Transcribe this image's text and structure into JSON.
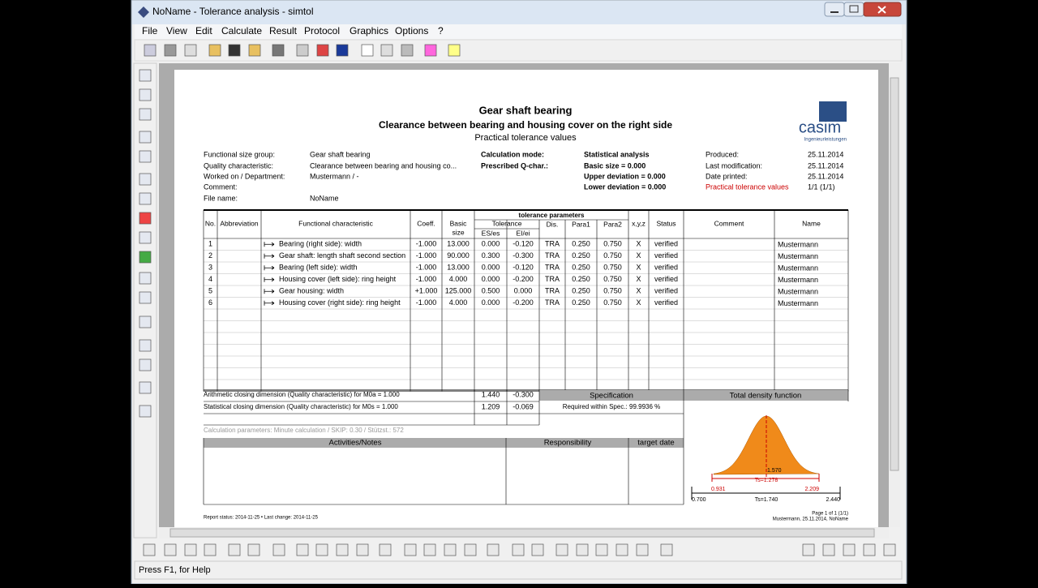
{
  "window": {
    "title": "NoName - Tolerance analysis - simtol",
    "menu": [
      "File",
      "View",
      "Edit",
      "Calculate",
      "Result",
      "Protocol",
      "Graphics",
      "Options",
      "?"
    ]
  },
  "report": {
    "title": "Gear shaft bearing",
    "subtitle": "Clearance between bearing and housing cover on the right side",
    "subtitle2": "Practical tolerance values",
    "logo": "casim",
    "logo_sub": "Ingenieurleistungen",
    "info": {
      "left": [
        {
          "label": "Functional size group:",
          "value": "Gear shaft bearing"
        },
        {
          "label": "Quality characteristic:",
          "value": "Clearance between bearing and housing co..."
        },
        {
          "label": "Worked on / Department:",
          "value": "Mustermann /  -"
        },
        {
          "label": "Comment:"
        },
        {
          "label": "File name:",
          "value": "NoName"
        }
      ],
      "middle": [
        {
          "label": "Calculation mode:",
          "value": "Statistical analysis"
        },
        {
          "label": "Prescribed Q-char.:",
          "value": "Basic size = 0.000"
        },
        {
          "value": "Upper deviation = 0.000"
        },
        {
          "value": "Lower deviation = 0.000"
        }
      ],
      "right": [
        {
          "label": "Produced:",
          "value": "25.11.2014"
        },
        {
          "label": "Last modification:",
          "value": "25.11.2014"
        },
        {
          "label": "Date printed:",
          "value": "25.11.2014"
        },
        {
          "label": "Practical tolerance values",
          "value": "1/1 (1/1)"
        }
      ]
    },
    "table": {
      "header": {
        "no": "No.",
        "abbreviation": "Abbreviation",
        "characteristic": "Functional characteristic",
        "coeff": "Coeff.",
        "basic": [
          "Basic",
          "size"
        ],
        "group": "tolerance parameters",
        "tolerance": "Tolerance",
        "es": "ES/es",
        "ei": "EI/ei",
        "dis": "Dis.",
        "para1": "Para1",
        "para2": "Para2",
        "xyz": "x,y,z",
        "status": "Status",
        "comment": "Comment",
        "name": "Name"
      },
      "rows": [
        {
          "no": "1",
          "characteristic": "Bearing (right side): width",
          "coeff": "-1.000",
          "basic": "13.000",
          "es": "0.000",
          "ei": "-0.120",
          "dis": "TRA",
          "para1": "0.250",
          "para2": "0.750",
          "xyz": "X",
          "status": "verified",
          "name": "Mustermann"
        },
        {
          "no": "2",
          "characteristic": "Gear shaft: length shaft second section",
          "coeff": "-1.000",
          "basic": "90.000",
          "es": "0.300",
          "ei": "-0.300",
          "dis": "TRA",
          "para1": "0.250",
          "para2": "0.750",
          "xyz": "X",
          "status": "verified",
          "name": "Mustermann"
        },
        {
          "no": "3",
          "characteristic": "Bearing (left side): width",
          "coeff": "-1.000",
          "basic": "13.000",
          "es": "0.000",
          "ei": "-0.120",
          "dis": "TRA",
          "para1": "0.250",
          "para2": "0.750",
          "xyz": "X",
          "status": "verified",
          "name": "Mustermann"
        },
        {
          "no": "4",
          "characteristic": "Housing cover (left side): ring height",
          "coeff": "-1.000",
          "basic": "4.000",
          "es": "0.000",
          "ei": "-0.200",
          "dis": "TRA",
          "para1": "0.250",
          "para2": "0.750",
          "xyz": "X",
          "status": "verified",
          "name": "Mustermann"
        },
        {
          "no": "5",
          "characteristic": "Gear housing: width",
          "coeff": "+1.000",
          "basic": "125.000",
          "es": "0.500",
          "ei": "0.000",
          "dis": "TRA",
          "para1": "0.250",
          "para2": "0.750",
          "xyz": "X",
          "status": "verified",
          "name": "Mustermann"
        },
        {
          "no": "6",
          "characteristic": "Housing cover (right side): ring height",
          "coeff": "-1.000",
          "basic": "4.000",
          "es": "0.000",
          "ei": "-0.200",
          "dis": "TRA",
          "para1": "0.250",
          "para2": "0.750",
          "xyz": "X",
          "status": "verified",
          "name": "Mustermann"
        }
      ]
    },
    "closing": {
      "arithmetic": {
        "label": "Arithmetic closing dimension (Quality characteristic) for M0a = 1.000",
        "a": "1.440",
        "b": "-0.300"
      },
      "statistical": {
        "label": "Statistical closing dimension (Quality characteristic) for M0s = 1.000",
        "a": "1.209",
        "b": "-0.069"
      },
      "parameters": "Calculation parameters: Minute calculation / SKIP: 0.30 / Stützst.: 572",
      "specification": "Specification",
      "required": "Required within Spec.: 99.9936 %",
      "density": "Total density function"
    },
    "activities": {
      "notes": "Activities/Notes",
      "responsibility": "Responsibility",
      "target": "target date"
    },
    "density": {
      "mean": "1.570",
      "low": "0.931",
      "ts": "Ts=1.278",
      "high": "2.209",
      "min": "0.700",
      "ts_total": "Ts=1.740",
      "max": "2.440"
    },
    "footer": {
      "left": "Report status: 2014-11-25  •  Last change: 2014-11-25",
      "page": "Page 1 of 1 (1/1)",
      "by": "Mustermann, 25.11.2014, NoName"
    }
  },
  "status": "Press F1, for Help"
}
